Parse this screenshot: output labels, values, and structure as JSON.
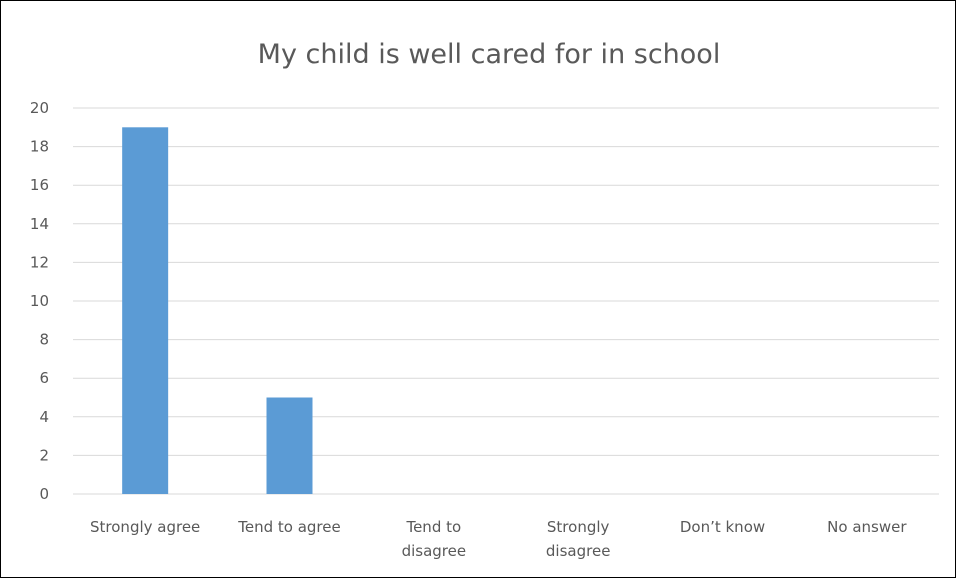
{
  "chart_data": {
    "type": "bar",
    "title": "My child is well cared for in school",
    "categories": [
      "Strongly agree",
      "Tend to agree",
      "Tend to disagree",
      "Strongly disagree",
      "Don’t know",
      "No answer"
    ],
    "category_label_lines": [
      [
        "Strongly agree"
      ],
      [
        "Tend to agree"
      ],
      [
        "Tend to",
        "disagree"
      ],
      [
        "Strongly",
        "disagree"
      ],
      [
        "Don’t know"
      ],
      [
        "No answer"
      ]
    ],
    "series": [
      {
        "values": [
          19,
          5,
          0,
          0,
          0,
          0
        ]
      }
    ],
    "yticks": [
      "0",
      "2",
      "4",
      "6",
      "8",
      "10",
      "12",
      "14",
      "16",
      "18",
      "20"
    ],
    "ylim": [
      0,
      20
    ],
    "xlabel": "",
    "ylabel": "",
    "grid": true,
    "legend": "none",
    "colors": {
      "bar": "#5B9BD5",
      "grid": "#D9D9D9",
      "text": "#595959",
      "border": "#000000"
    }
  }
}
